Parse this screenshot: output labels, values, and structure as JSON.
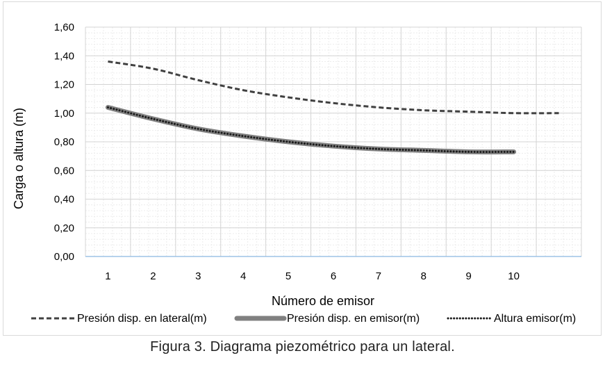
{
  "caption": "Figura 3. Diagrama piezométrico para un lateral.",
  "chart_data": {
    "type": "line",
    "title": "",
    "xlabel": "Número de emisor",
    "ylabel": "Carga o altura (m)",
    "ylim": [
      0,
      1.6
    ],
    "yticks": [
      0,
      0.2,
      0.4,
      0.6,
      0.8,
      1.0,
      1.2,
      1.4,
      1.6
    ],
    "ytick_labels": [
      "0,00",
      "0,20",
      "0,40",
      "0,60",
      "0,80",
      "1,00",
      "1,20",
      "1,40",
      "1,60"
    ],
    "categories": [
      "1",
      "2",
      "3",
      "4",
      "5",
      "6",
      "7",
      "8",
      "9",
      "10"
    ],
    "grid": true,
    "legend_position": "bottom",
    "series": [
      {
        "name": "Presión disp. en lateral(m)",
        "style": "dashed",
        "color": "#404040",
        "x": [
          1,
          2,
          3,
          4,
          5,
          6,
          7,
          8,
          9,
          10,
          11
        ],
        "values": [
          1.36,
          1.31,
          1.23,
          1.16,
          1.11,
          1.07,
          1.04,
          1.02,
          1.01,
          1.0,
          1.0
        ]
      },
      {
        "name": "Presión disp. en emisor(m)",
        "style": "thick-solid",
        "color": "#808080",
        "x": [
          1,
          2,
          3,
          4,
          5,
          6,
          7,
          8,
          9,
          10
        ],
        "values": [
          1.04,
          0.96,
          0.89,
          0.84,
          0.8,
          0.77,
          0.75,
          0.74,
          0.73,
          0.73
        ]
      },
      {
        "name": "Altura emisor(m)",
        "style": "dotted",
        "color": "#1a1a1a",
        "x": [
          1,
          2,
          3,
          4,
          5,
          6,
          7,
          8,
          9,
          10
        ],
        "values": [
          1.04,
          0.96,
          0.89,
          0.84,
          0.8,
          0.77,
          0.75,
          0.74,
          0.73,
          0.73
        ]
      }
    ]
  }
}
